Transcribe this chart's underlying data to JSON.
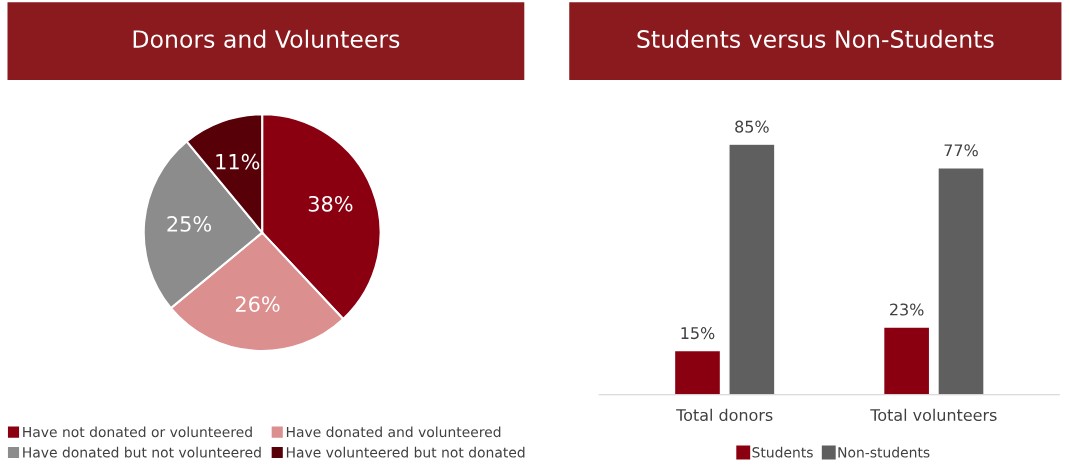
{
  "chart_data": [
    {
      "type": "pie",
      "title": "Donors and Volunteers",
      "categories": [
        "Have not donated or volunteered",
        "Have donated and volunteered",
        "Have donated but not volunteered",
        "Have volunteered but not donated"
      ],
      "values": [
        38,
        26,
        25,
        11
      ],
      "value_labels": [
        "38%",
        "26%",
        "25%",
        "11%"
      ],
      "colors": [
        "#8b0010",
        "#dc8f8f",
        "#8c8c8c",
        "#580008"
      ],
      "legend": "bottom"
    },
    {
      "type": "bar",
      "title": "Students versus Non-Students",
      "categories": [
        "Total donors",
        "Total volunteers"
      ],
      "legend": "bottom",
      "series": [
        {
          "name": "Students",
          "color": "#8b0010",
          "values": [
            15,
            23
          ],
          "value_labels": [
            "15%",
            "23%"
          ]
        },
        {
          "name": "Non-students",
          "color": "#5f5f5f",
          "values": [
            85,
            77
          ],
          "value_labels": [
            "85%",
            "77%"
          ]
        }
      ]
    }
  ]
}
